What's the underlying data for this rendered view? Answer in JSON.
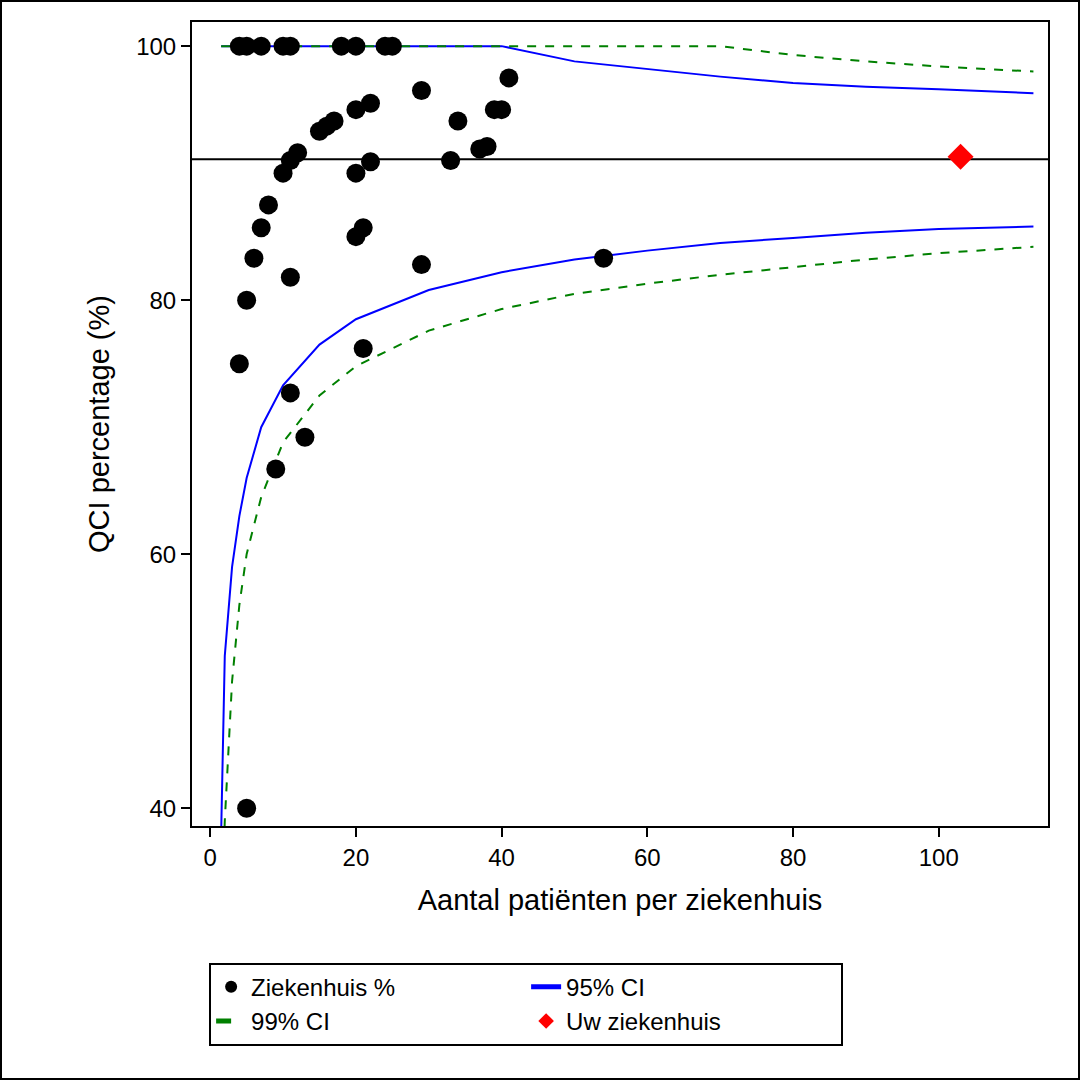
{
  "chart_data": {
    "type": "scatter",
    "xlabel": "Aantal patiënten per ziekenhuis",
    "ylabel": "QCI percentage (%)",
    "xlim": [
      -2.5,
      115
    ],
    "ylim": [
      38.6,
      101.9
    ],
    "xticks": [
      0,
      20,
      40,
      60,
      80,
      100
    ],
    "yticks": [
      40,
      60,
      80,
      100
    ],
    "grid": false,
    "legend": "bottom",
    "hline": 91.1,
    "series": [
      {
        "name": "Ziekenhuis %",
        "type": "scatter",
        "marker": "circle",
        "color": "#000000",
        "x": [
          4,
          5,
          7,
          10,
          11,
          18,
          20,
          24,
          25,
          41,
          29,
          22,
          20,
          39,
          40,
          15,
          16,
          17,
          34,
          12,
          11,
          38,
          37,
          33,
          22,
          10,
          20,
          8,
          7,
          21,
          20,
          6,
          54,
          29,
          11,
          5,
          4,
          21,
          11,
          13,
          9,
          5
        ],
        "values": [
          100,
          100,
          100,
          100,
          100,
          100,
          100,
          100,
          100,
          97.5,
          96.5,
          95.5,
          95,
          95,
          95,
          93.3,
          93.7,
          94.1,
          94.1,
          91.6,
          91,
          92.1,
          91.9,
          91,
          90.9,
          90,
          90,
          87.5,
          85.7,
          85.7,
          85,
          83.3,
          83.3,
          82.8,
          81.8,
          80,
          75,
          76.2,
          72.7,
          69.2,
          66.7,
          40
        ]
      },
      {
        "name": "95% CI",
        "type": "line",
        "line_style": "solid",
        "color": "#0000ff",
        "x": [
          1.5,
          2,
          3,
          4,
          5,
          7,
          10,
          15,
          20,
          30,
          40,
          50,
          60,
          70,
          80,
          90,
          100,
          113
        ],
        "lower": [
          38,
          52,
          59,
          63,
          66,
          70,
          73.3,
          76.5,
          78.5,
          80.8,
          82.2,
          83.2,
          83.9,
          84.5,
          84.9,
          85.3,
          85.6,
          85.8
        ],
        "upper": [
          100,
          100,
          100,
          100,
          100,
          100,
          100,
          100,
          100,
          100,
          100,
          98.8,
          98.2,
          97.6,
          97.1,
          96.8,
          96.6,
          96.3
        ]
      },
      {
        "name": "99% CI",
        "type": "line",
        "line_style": "dash",
        "color": "#008000",
        "x": [
          1.5,
          2,
          3,
          4,
          5,
          7,
          10,
          15,
          20,
          30,
          40,
          50,
          60,
          70,
          80,
          90,
          100,
          113
        ],
        "lower": [
          30,
          39,
          50,
          56,
          60,
          64.5,
          68.8,
          72.5,
          74.8,
          77.6,
          79.3,
          80.5,
          81.3,
          82,
          82.6,
          83.2,
          83.7,
          84.2
        ],
        "upper": [
          100,
          100,
          100,
          100,
          100,
          100,
          100,
          100,
          100,
          100,
          100,
          100,
          100,
          100,
          99.3,
          98.8,
          98.4,
          98
        ]
      },
      {
        "name": "Uw ziekenhuis",
        "type": "scatter",
        "marker": "diamond",
        "color": "#ff0000",
        "x": [
          103
        ],
        "values": [
          91.3
        ]
      }
    ]
  }
}
